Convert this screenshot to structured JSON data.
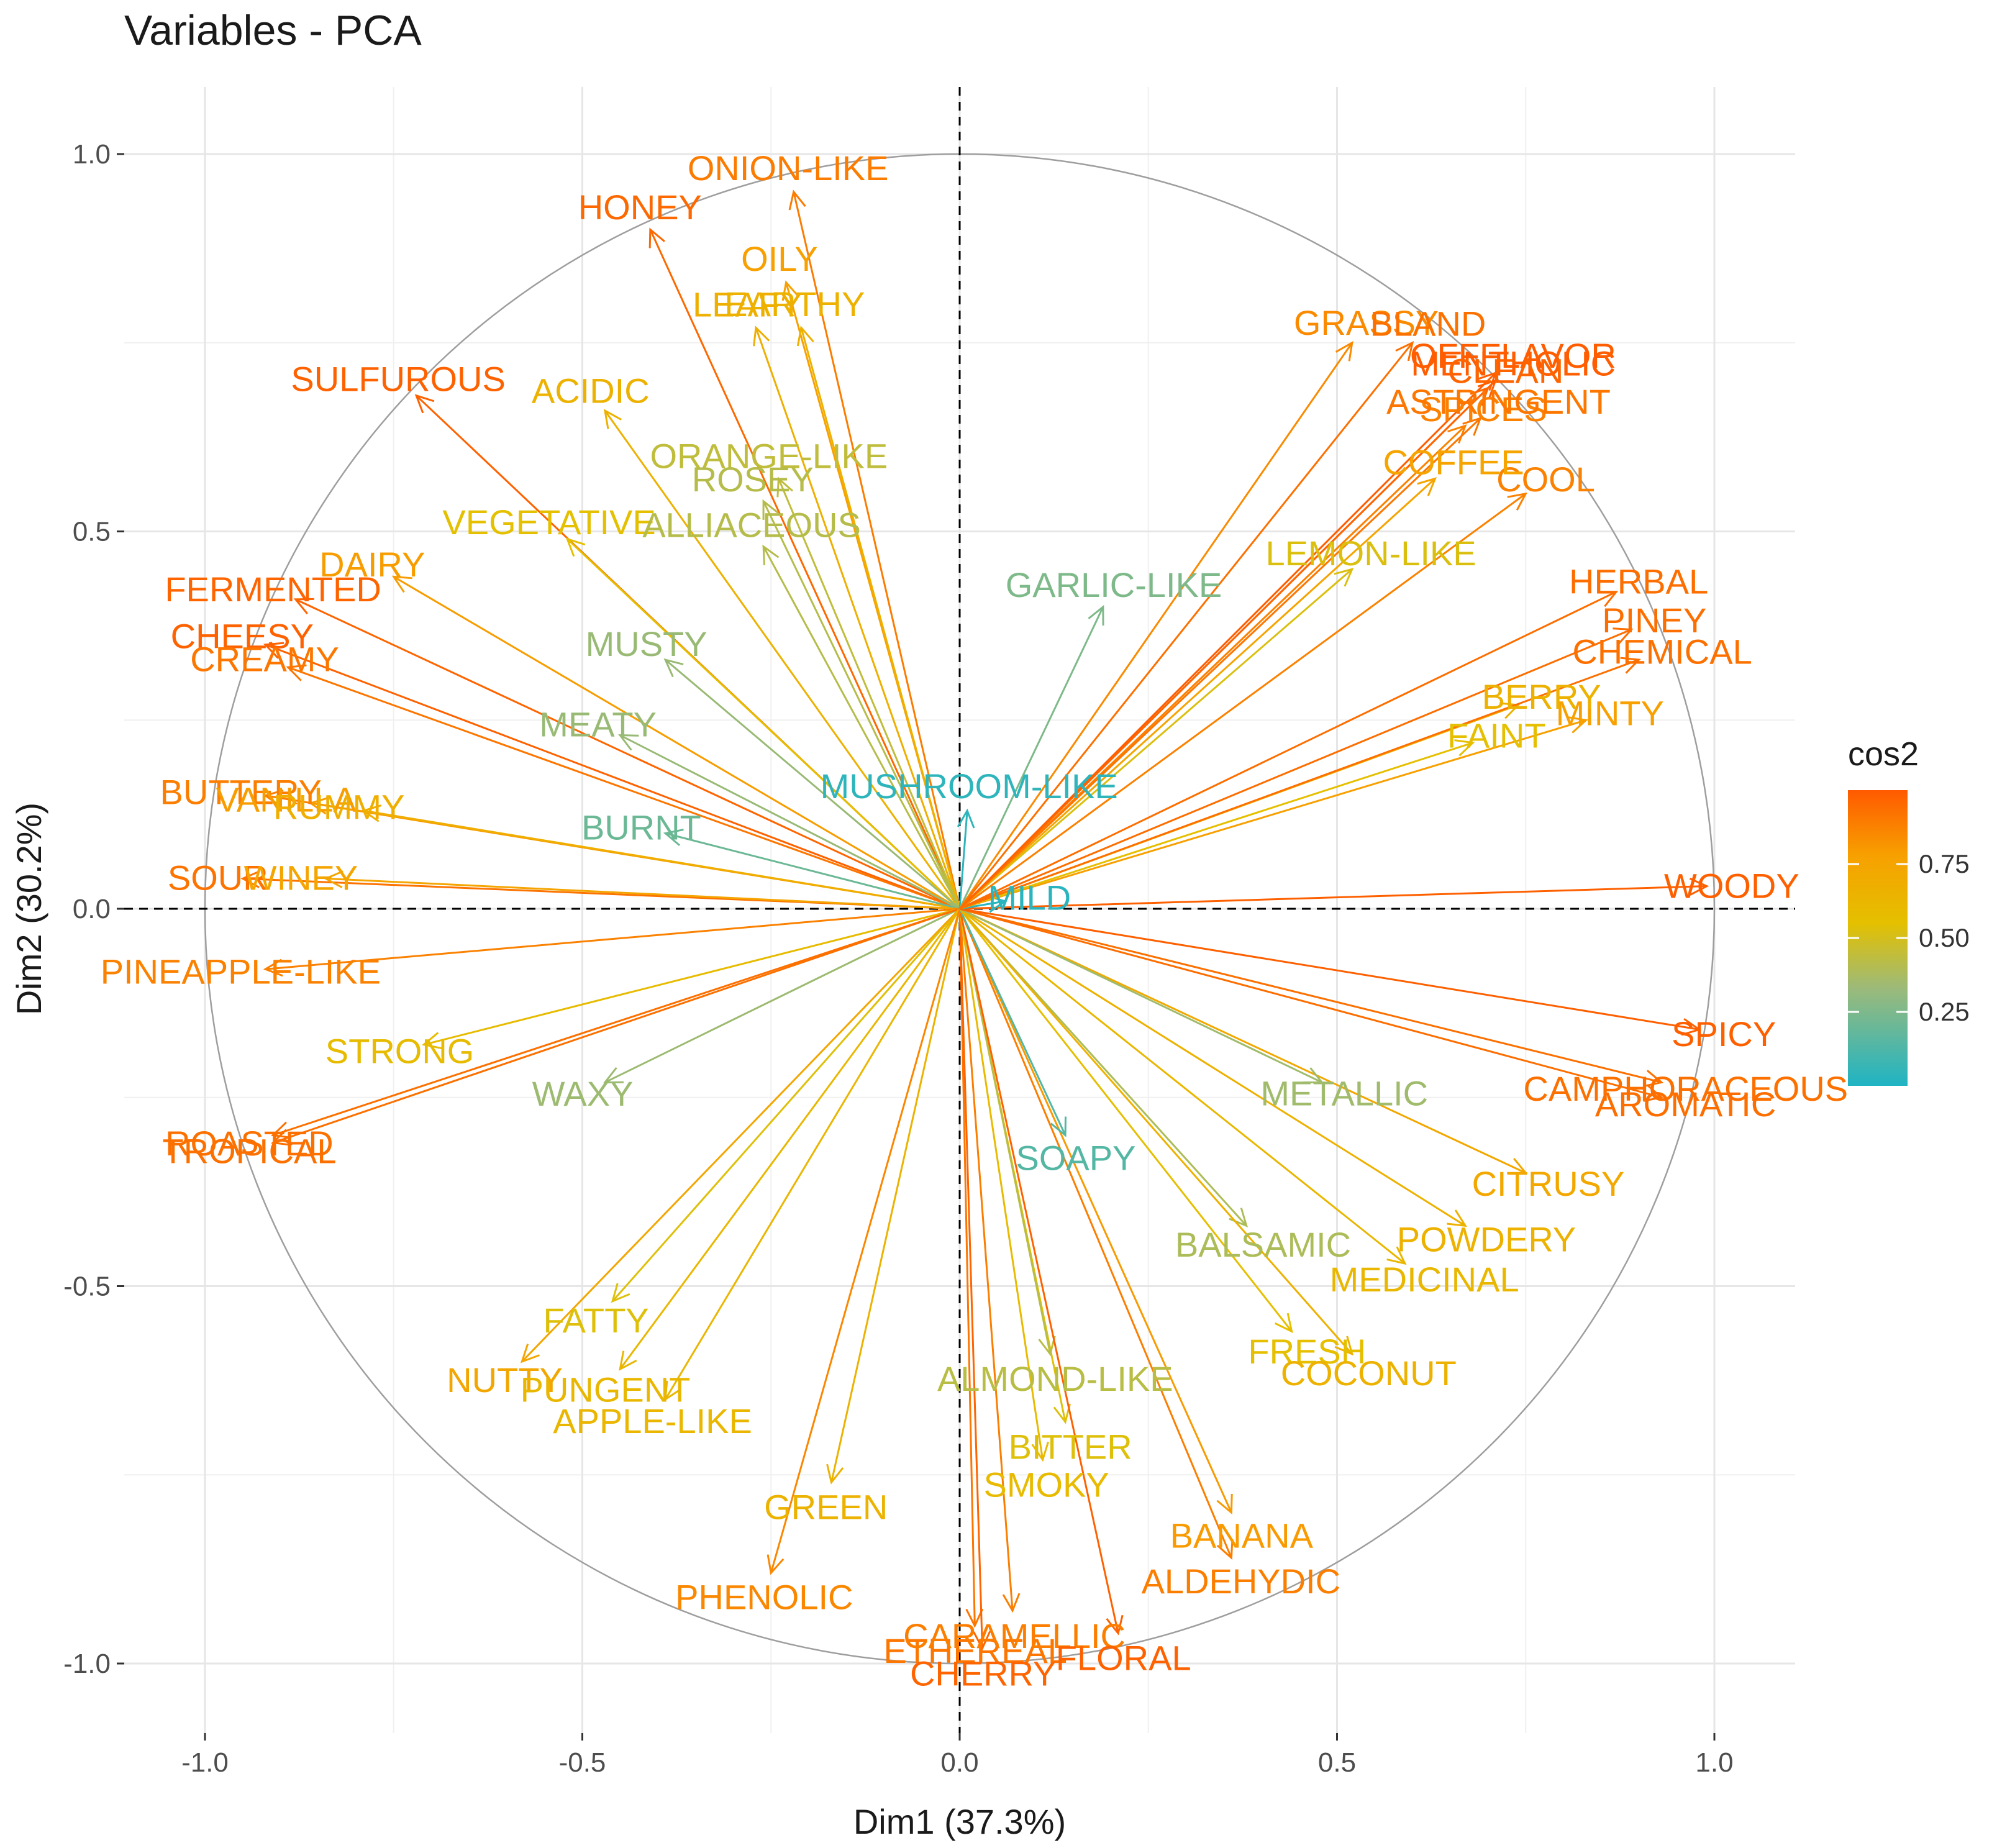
{
  "chart_data": {
    "type": "scatter",
    "subtype": "pca-variable-correlation-circle",
    "title": "Variables - PCA",
    "xlabel": "Dim1 (37.3%)",
    "ylabel": "Dim2 (30.2%)",
    "xlim": [
      -1.1,
      1.1
    ],
    "ylim": [
      -1.1,
      1.1
    ],
    "x_ticks": [
      -1.0,
      -0.5,
      0.0,
      0.5,
      1.0
    ],
    "x_tick_labels": [
      "-1.0",
      "-0.5",
      "0.0",
      "0.5",
      "1.0"
    ],
    "y_ticks": [
      -1.0,
      -0.5,
      0.0,
      0.5,
      1.0
    ],
    "y_tick_labels": [
      "-1.0",
      "-0.5",
      "0.0",
      "0.5",
      "1.0"
    ],
    "grid": true,
    "unit_circle": true,
    "legend": {
      "title": "cos2",
      "placement": "right",
      "ticks": [
        0.25,
        0.5,
        0.75
      ],
      "tick_labels": [
        "0.25",
        "0.50",
        "0.75"
      ],
      "colors": [
        "#1fb4c4",
        "#e4c000",
        "#f7a000",
        "#ff5a00"
      ]
    },
    "series": [
      {
        "name": "ONION-LIKE",
        "x": -0.22,
        "y": 0.95,
        "cos2": 0.88
      },
      {
        "name": "HONEY",
        "x": -0.41,
        "y": 0.9,
        "cos2": 0.95
      },
      {
        "name": "OILY",
        "x": -0.23,
        "y": 0.83,
        "cos2": 0.75
      },
      {
        "name": "LEAFY",
        "x": -0.27,
        "y": 0.77,
        "cos2": 0.63
      },
      {
        "name": "EARTHY",
        "x": -0.21,
        "y": 0.77,
        "cos2": 0.62
      },
      {
        "name": "SULFUROUS",
        "x": -0.72,
        "y": 0.68,
        "cos2": 0.97
      },
      {
        "name": "ACIDIC",
        "x": -0.47,
        "y": 0.66,
        "cos2": 0.62
      },
      {
        "name": "ORANGE-LIKE",
        "x": -0.24,
        "y": 0.57,
        "cos2": 0.38
      },
      {
        "name": "ROSEY",
        "x": -0.26,
        "y": 0.54,
        "cos2": 0.35
      },
      {
        "name": "VEGETATIVE",
        "x": -0.52,
        "y": 0.49,
        "cos2": 0.5
      },
      {
        "name": "ALLIACEOUS",
        "x": -0.26,
        "y": 0.48,
        "cos2": 0.35
      },
      {
        "name": "FERMENTED",
        "x": -0.88,
        "y": 0.41,
        "cos2": 0.96
      },
      {
        "name": "DAIRY",
        "x": -0.75,
        "y": 0.44,
        "cos2": 0.76
      },
      {
        "name": "CHEESY",
        "x": -0.92,
        "y": 0.35,
        "cos2": 0.97
      },
      {
        "name": "MUSTY",
        "x": -0.39,
        "y": 0.33,
        "cos2": 0.26
      },
      {
        "name": "CREAMY",
        "x": -0.89,
        "y": 0.32,
        "cos2": 0.9
      },
      {
        "name": "MEATY",
        "x": -0.45,
        "y": 0.23,
        "cos2": 0.26
      },
      {
        "name": "BUTTERY",
        "x": -0.92,
        "y": 0.15,
        "cos2": 0.87
      },
      {
        "name": "VANILLA",
        "x": -0.86,
        "y": 0.14,
        "cos2": 0.76
      },
      {
        "name": "RUMMY",
        "x": -0.79,
        "y": 0.13,
        "cos2": 0.64
      },
      {
        "name": "BURNT",
        "x": -0.39,
        "y": 0.1,
        "cos2": 0.16
      },
      {
        "name": "SOUR",
        "x": -0.95,
        "y": 0.04,
        "cos2": 0.91
      },
      {
        "name": "WINEY",
        "x": -0.84,
        "y": 0.04,
        "cos2": 0.71
      },
      {
        "name": "PINEAPPLE-LIKE",
        "x": -0.92,
        "y": -0.08,
        "cos2": 0.86
      },
      {
        "name": "STRONG",
        "x": -0.71,
        "y": -0.18,
        "cos2": 0.54
      },
      {
        "name": "WAXY",
        "x": -0.47,
        "y": -0.23,
        "cos2": 0.27
      },
      {
        "name": "ROASTED",
        "x": -0.91,
        "y": -0.3,
        "cos2": 0.92
      },
      {
        "name": "TROPICAL",
        "x": -0.91,
        "y": -0.31,
        "cos2": 0.92
      },
      {
        "name": "FATTY",
        "x": -0.46,
        "y": -0.52,
        "cos2": 0.48
      },
      {
        "name": "NUTTY",
        "x": -0.58,
        "y": -0.6,
        "cos2": 0.7
      },
      {
        "name": "PUNGENT",
        "x": -0.45,
        "y": -0.61,
        "cos2": 0.57
      },
      {
        "name": "APPLE-LIKE",
        "x": -0.39,
        "y": -0.65,
        "cos2": 0.58
      },
      {
        "name": "GREEN",
        "x": -0.17,
        "y": -0.76,
        "cos2": 0.61
      },
      {
        "name": "PHENOLIC",
        "x": -0.25,
        "y": -0.88,
        "cos2": 0.84
      },
      {
        "name": "ETHEREAL",
        "x": 0.02,
        "y": -0.95,
        "cos2": 0.9
      },
      {
        "name": "CHERRY",
        "x": 0.03,
        "y": -0.98,
        "cos2": 0.96
      },
      {
        "name": "CARAMELLIC",
        "x": 0.07,
        "y": -0.93,
        "cos2": 0.87
      },
      {
        "name": "SMOKY",
        "x": 0.11,
        "y": -0.73,
        "cos2": 0.55
      },
      {
        "name": "BITTER",
        "x": 0.14,
        "y": -0.68,
        "cos2": 0.48
      },
      {
        "name": "ALMOND-LIKE",
        "x": 0.12,
        "y": -0.59,
        "cos2": 0.36
      },
      {
        "name": "FLORAL",
        "x": 0.21,
        "y": -0.96,
        "cos2": 0.97
      },
      {
        "name": "BANANA",
        "x": 0.36,
        "y": -0.8,
        "cos2": 0.77
      },
      {
        "name": "ALDEHYDIC",
        "x": 0.36,
        "y": -0.86,
        "cos2": 0.87
      },
      {
        "name": "SOAPY",
        "x": 0.14,
        "y": -0.3,
        "cos2": 0.11
      },
      {
        "name": "BALSAMIC",
        "x": 0.38,
        "y": -0.42,
        "cos2": 0.32
      },
      {
        "name": "FRESH",
        "x": 0.44,
        "y": -0.56,
        "cos2": 0.51
      },
      {
        "name": "COCONUT",
        "x": 0.52,
        "y": -0.59,
        "cos2": 0.62
      },
      {
        "name": "MEDICINAL",
        "x": 0.59,
        "y": -0.47,
        "cos2": 0.57
      },
      {
        "name": "POWDERY",
        "x": 0.67,
        "y": -0.42,
        "cos2": 0.62
      },
      {
        "name": "CITRUSY",
        "x": 0.75,
        "y": -0.35,
        "cos2": 0.69
      },
      {
        "name": "METALLIC",
        "x": 0.48,
        "y": -0.23,
        "cos2": 0.28
      },
      {
        "name": "CAMPHORACEOUS",
        "x": 0.93,
        "y": -0.23,
        "cos2": 0.92
      },
      {
        "name": "AROMATIC",
        "x": 0.93,
        "y": -0.25,
        "cos2": 0.93
      },
      {
        "name": "SPICY",
        "x": 0.98,
        "y": -0.16,
        "cos2": 0.98
      },
      {
        "name": "WOODY",
        "x": 0.99,
        "y": 0.03,
        "cos2": 0.98
      },
      {
        "name": "MILD",
        "x": 0.06,
        "y": 0.01,
        "cos2": 0.02
      },
      {
        "name": "MUSHROOM-LIKE",
        "x": 0.01,
        "y": 0.13,
        "cos2": 0.03
      },
      {
        "name": "GARLIC-LIKE",
        "x": 0.19,
        "y": 0.4,
        "cos2": 0.2
      },
      {
        "name": "MINTY",
        "x": 0.83,
        "y": 0.25,
        "cos2": 0.75
      },
      {
        "name": "FAINT",
        "x": 0.68,
        "y": 0.22,
        "cos2": 0.51
      },
      {
        "name": "BERRY",
        "x": 0.74,
        "y": 0.27,
        "cos2": 0.62
      },
      {
        "name": "CHEMICAL",
        "x": 0.9,
        "y": 0.33,
        "cos2": 0.92
      },
      {
        "name": "PINEY",
        "x": 0.89,
        "y": 0.37,
        "cos2": 0.93
      },
      {
        "name": "HERBAL",
        "x": 0.87,
        "y": 0.42,
        "cos2": 0.93
      },
      {
        "name": "LEMON-LIKE",
        "x": 0.52,
        "y": 0.45,
        "cos2": 0.47
      },
      {
        "name": "COOL",
        "x": 0.75,
        "y": 0.55,
        "cos2": 0.86
      },
      {
        "name": "COFFEE",
        "x": 0.63,
        "y": 0.57,
        "cos2": 0.72
      },
      {
        "name": "SPICES",
        "x": 0.67,
        "y": 0.64,
        "cos2": 0.86
      },
      {
        "name": "ASTRINGENT",
        "x": 0.69,
        "y": 0.65,
        "cos2": 0.9
      },
      {
        "name": "MENTHOLIC",
        "x": 0.71,
        "y": 0.7,
        "cos2": 0.99
      },
      {
        "name": "OFFFLAVOR",
        "x": 0.71,
        "y": 0.71,
        "cos2": 0.99
      },
      {
        "name": "CLEAN",
        "x": 0.7,
        "y": 0.69,
        "cos2": 0.96
      },
      {
        "name": "GRASSY",
        "x": 0.52,
        "y": 0.75,
        "cos2": 0.83
      },
      {
        "name": "BLAND",
        "x": 0.6,
        "y": 0.75,
        "cos2": 0.92
      }
    ]
  }
}
